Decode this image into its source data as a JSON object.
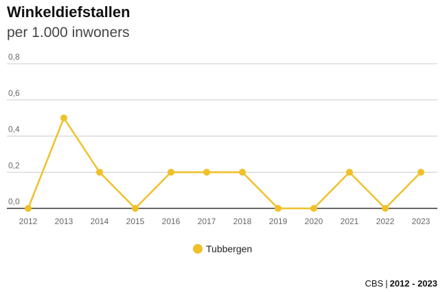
{
  "header": {
    "title": "Winkeldiefstallen",
    "subtitle": "per 1.000 inwoners"
  },
  "legend": {
    "label": "Tubbergen"
  },
  "footer": {
    "source": "CBS",
    "period": "2012 - 2023"
  },
  "colors": {
    "series": "#f0c027",
    "grid": "#cccccc",
    "axis": "#333333",
    "tick_text": "#666666"
  },
  "chart_data": {
    "type": "line",
    "title": "Winkeldiefstallen",
    "subtitle": "per 1.000 inwoners",
    "x": [
      "2012",
      "2013",
      "2014",
      "2015",
      "2016",
      "2017",
      "2018",
      "2019",
      "2020",
      "2021",
      "2022",
      "2023"
    ],
    "series": [
      {
        "name": "Tubbergen",
        "values": [
          0.0,
          0.5,
          0.2,
          0.0,
          0.2,
          0.2,
          0.2,
          0.0,
          0.0,
          0.2,
          0.0,
          0.2
        ]
      }
    ],
    "y_ticks": [
      "0,0",
      "0,2",
      "0,4",
      "0,6",
      "0,8"
    ],
    "ylim": [
      0,
      0.8
    ],
    "grid": true,
    "legend_position": "bottom-center"
  }
}
